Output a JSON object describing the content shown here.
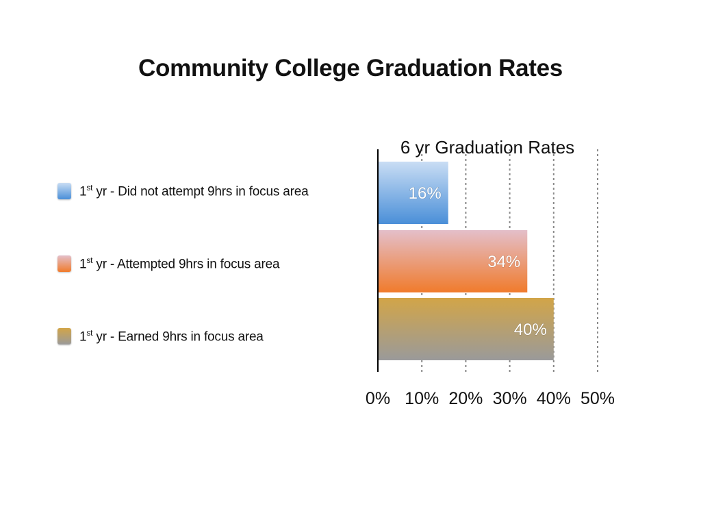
{
  "title": "Community College Graduation Rates",
  "chart_data": {
    "type": "bar",
    "orientation": "horizontal",
    "title": "6 yr Graduation Rates",
    "categories": [
      "1st yr - Did not attempt 9hrs in focus area",
      "1st yr - Attempted 9hrs in focus area",
      "1st yr - Earned 9hrs in focus area"
    ],
    "values": [
      16,
      34,
      40
    ],
    "data_labels": [
      "16%",
      "34%",
      "40%"
    ],
    "xlim": [
      0,
      50
    ],
    "ticks": [
      0,
      10,
      20,
      30,
      40,
      50
    ],
    "tick_labels": [
      "0%",
      "10%",
      "20%",
      "30%",
      "40%",
      "50%"
    ],
    "grid": true,
    "legend_position": "left",
    "colors": [
      [
        "#c9ddf4",
        "#4a8fd8"
      ],
      [
        "#e4bfca",
        "#f07b2c"
      ],
      [
        "#d2a548",
        "#9a9a9a"
      ]
    ]
  },
  "legend": {
    "items": [
      {
        "pre": "1",
        "sup": "st",
        "text": " yr - Did not attempt 9hrs in focus area"
      },
      {
        "pre": "1",
        "sup": "st",
        "text": " yr - Attempted 9hrs in focus area"
      },
      {
        "pre": "1",
        "sup": "st",
        "text": " yr - Earned 9hrs in focus area"
      }
    ]
  }
}
